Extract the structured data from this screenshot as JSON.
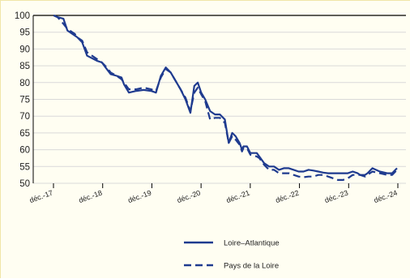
{
  "chart_data": {
    "type": "line",
    "title": "",
    "xlabel": "",
    "ylabel": "",
    "ylim": [
      50,
      100
    ],
    "yticks": [
      "100",
      "95",
      "90",
      "85",
      "80",
      "75",
      "70",
      "65",
      "60",
      "55",
      "50"
    ],
    "xticks": [
      "déc.-17",
      "déc.-18",
      "déc.-19",
      "déc.-20",
      "déc.-21",
      "déc.-22",
      "déc.-23",
      "déc.-24"
    ],
    "xlim": [
      2017.917,
      2024.917
    ],
    "grid": "horizontal",
    "reference_line": 100,
    "legend_position": "bottom-center",
    "series": [
      {
        "name": "Loire–Atlantique",
        "style": "solid",
        "color": "#1f3b8f",
        "x": [
          2017.92,
          2018.0,
          2018.12,
          2018.2,
          2018.35,
          2018.4,
          2018.5,
          2018.6,
          2018.8,
          2018.9,
          2019.0,
          2019.08,
          2019.2,
          2019.3,
          2019.35,
          2019.45,
          2019.6,
          2019.75,
          2019.9,
          2020.0,
          2020.1,
          2020.2,
          2020.3,
          2020.5,
          2020.6,
          2020.7,
          2020.78,
          2020.85,
          2020.92,
          2021.0,
          2021.1,
          2021.2,
          2021.3,
          2021.4,
          2021.48,
          2021.55,
          2021.62,
          2021.7,
          2021.75,
          2021.78,
          2021.85,
          2021.92,
          2022.05,
          2022.1,
          2022.2,
          2022.3,
          2022.4,
          2022.5,
          2022.6,
          2022.7,
          2022.8,
          2022.9,
          2023.0,
          2023.1,
          2023.2,
          2023.3,
          2023.4,
          2023.5,
          2023.6,
          2023.7,
          2023.8,
          2023.9,
          2024.0,
          2024.1,
          2024.15,
          2024.25,
          2024.3,
          2024.4,
          2024.55,
          2024.7,
          2024.8,
          2024.9
        ],
        "values": [
          100,
          99.5,
          99,
          95.5,
          94,
          93.5,
          92,
          88,
          86.5,
          86,
          84,
          82.5,
          82,
          81.5,
          79.5,
          77,
          77.5,
          77.8,
          77.5,
          77,
          82,
          84.5,
          83,
          78,
          75,
          71,
          79,
          80,
          77,
          75,
          71.5,
          70.5,
          70.5,
          69,
          62,
          65,
          64,
          62,
          60,
          61,
          61,
          59,
          59,
          58,
          56,
          55,
          55,
          54,
          54.5,
          54.5,
          54,
          53.5,
          53.5,
          54,
          53.8,
          53.5,
          53.2,
          53,
          53,
          53,
          53,
          53,
          53.5,
          53,
          52.5,
          52.5,
          53,
          54.5,
          53.5,
          53,
          53,
          54.5
        ]
      },
      {
        "name": "Pays de la Loire",
        "style": "dashed",
        "color": "#1f3b8f",
        "x": [
          2017.92,
          2018.0,
          2018.12,
          2018.2,
          2018.35,
          2018.4,
          2018.5,
          2018.6,
          2018.8,
          2018.9,
          2019.0,
          2019.08,
          2019.2,
          2019.3,
          2019.35,
          2019.45,
          2019.6,
          2019.75,
          2019.9,
          2020.0,
          2020.1,
          2020.2,
          2020.3,
          2020.5,
          2020.6,
          2020.7,
          2020.78,
          2020.85,
          2020.92,
          2021.0,
          2021.1,
          2021.2,
          2021.3,
          2021.4,
          2021.48,
          2021.55,
          2021.62,
          2021.7,
          2021.75,
          2021.78,
          2021.85,
          2021.92,
          2022.05,
          2022.1,
          2022.2,
          2022.3,
          2022.4,
          2022.5,
          2022.6,
          2022.7,
          2022.8,
          2022.9,
          2023.0,
          2023.1,
          2023.2,
          2023.3,
          2023.4,
          2023.5,
          2023.6,
          2023.7,
          2023.8,
          2023.9,
          2024.0,
          2024.1,
          2024.15,
          2024.25,
          2024.3,
          2024.4,
          2024.55,
          2024.7,
          2024.8,
          2024.9
        ],
        "values": [
          100,
          99.5,
          97.5,
          96,
          94.5,
          93.5,
          92.5,
          89,
          87,
          86,
          84.5,
          83,
          82,
          81,
          80,
          78,
          78,
          78.5,
          78,
          77.5,
          81.5,
          84,
          83,
          78,
          75.5,
          71.5,
          77,
          78.5,
          76.5,
          74.5,
          69,
          69.5,
          69.5,
          68,
          62,
          64,
          63,
          61.5,
          59.5,
          60.5,
          60.5,
          58.5,
          58,
          57.5,
          55.5,
          54,
          54,
          53,
          53,
          53,
          52.5,
          52,
          51.8,
          52,
          52,
          52.5,
          52.5,
          52,
          51.5,
          51,
          51,
          51.5,
          52.5,
          52.5,
          52.5,
          52,
          52.5,
          53.5,
          53,
          52.5,
          52.5,
          54
        ]
      }
    ]
  }
}
